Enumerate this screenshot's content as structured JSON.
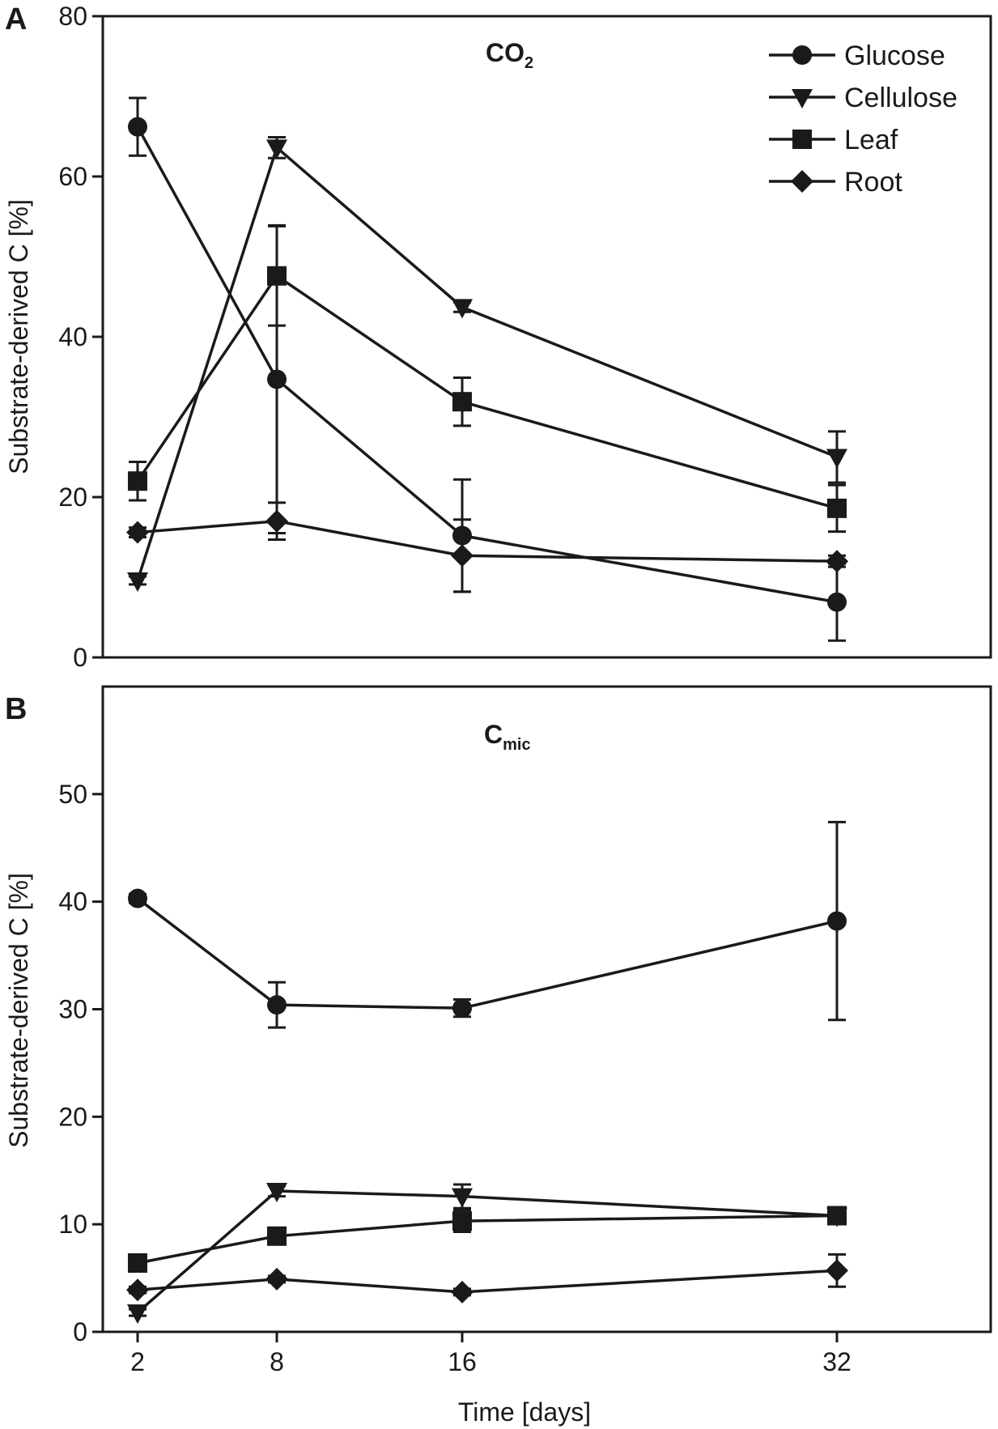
{
  "figure": {
    "background": "#ffffff",
    "ink": "#1a1a1a"
  },
  "x_axis": {
    "label": "Time [days]",
    "categories": [
      "2",
      "8",
      "16",
      "32"
    ],
    "values": [
      2,
      8,
      16,
      32
    ]
  },
  "legend": [
    {
      "name": "Glucose",
      "marker": "circle"
    },
    {
      "name": "Cellulose",
      "marker": "triangle-down"
    },
    {
      "name": "Leaf",
      "marker": "square"
    },
    {
      "name": "Root",
      "marker": "diamond"
    }
  ],
  "chart_data": [
    {
      "type": "line",
      "panel": "A",
      "title": "CO",
      "title_sub": "2",
      "xlabel": "Time [days]",
      "ylabel": "Substrate-derived C [%]",
      "x": [
        2,
        8,
        16,
        32
      ],
      "ylim": [
        0,
        80
      ],
      "yticks": [
        0,
        20,
        40,
        60,
        80
      ],
      "legend_position": "top-right",
      "series": [
        {
          "name": "Glucose",
          "marker": "circle",
          "values": [
            66.2,
            34.7,
            15.2,
            6.9
          ],
          "errors": [
            3.6,
            19.2,
            7.0,
            4.8
          ]
        },
        {
          "name": "Cellulose",
          "marker": "triangle-down",
          "values": [
            9.6,
            63.6,
            43.7,
            25.0
          ],
          "errors": [
            0.5,
            1.3,
            0.6,
            3.2
          ]
        },
        {
          "name": "Leaf",
          "marker": "square",
          "values": [
            22.0,
            47.6,
            31.9,
            18.6
          ],
          "errors": [
            2.4,
            6.2,
            3.0,
            2.9
          ]
        },
        {
          "name": "Root",
          "marker": "diamond",
          "values": [
            15.6,
            17.0,
            12.7,
            12.0
          ],
          "errors": [
            0.6,
            2.3,
            4.5,
            0.7
          ]
        }
      ]
    },
    {
      "type": "line",
      "panel": "B",
      "title": "C",
      "title_sub": "mic",
      "xlabel": "Time [days]",
      "ylabel": "Substrate-derived C [%]",
      "x": [
        2,
        8,
        16,
        32
      ],
      "ylim": [
        0,
        60
      ],
      "yticks": [
        0,
        10,
        20,
        30,
        40,
        50
      ],
      "series": [
        {
          "name": "Glucose",
          "marker": "circle",
          "values": [
            40.3,
            30.4,
            30.1,
            38.2
          ],
          "errors": [
            0.4,
            2.1,
            0.8,
            9.2
          ]
        },
        {
          "name": "Cellulose",
          "marker": "triangle-down",
          "values": [
            1.8,
            13.1,
            12.6,
            10.8
          ],
          "errors": [
            0.3,
            0.5,
            1.1,
            0.7
          ]
        },
        {
          "name": "Leaf",
          "marker": "square",
          "values": [
            6.4,
            8.9,
            10.3,
            10.8
          ],
          "errors": [
            0.4,
            0.5,
            1.0,
            0.5
          ]
        },
        {
          "name": "Root",
          "marker": "diamond",
          "values": [
            3.9,
            4.9,
            3.7,
            5.7
          ],
          "errors": [
            0.3,
            0.3,
            0.3,
            1.5
          ]
        }
      ]
    }
  ]
}
